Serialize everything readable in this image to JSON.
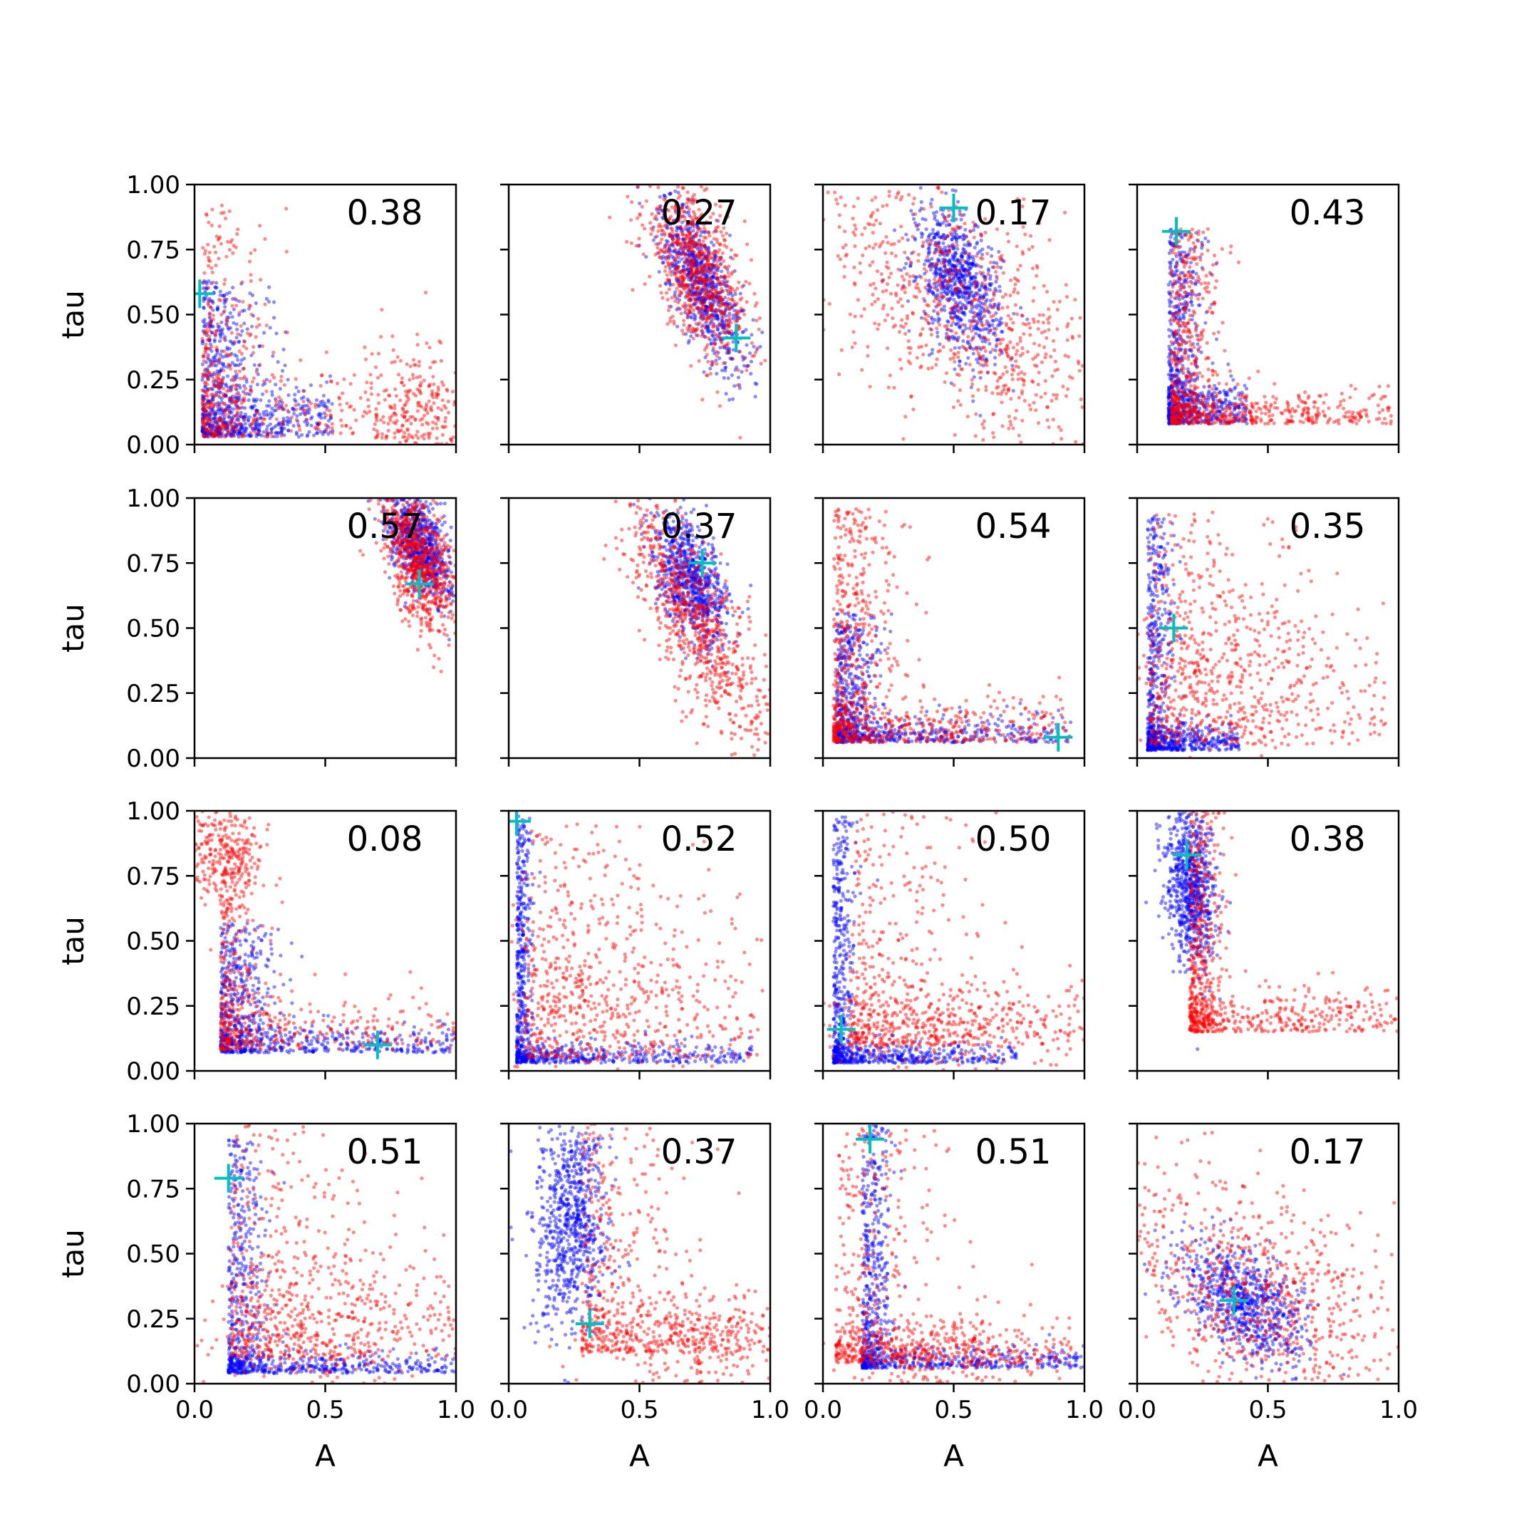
{
  "chart_data": {
    "type": "scatter",
    "rows": 4,
    "cols": 4,
    "xlabel": "A",
    "ylabel": "tau",
    "xlim": [
      0,
      1
    ],
    "ylim": [
      0,
      1
    ],
    "xticks": [
      "0.0",
      "0.5",
      "1.0"
    ],
    "yticks": [
      "0.00",
      "0.25",
      "0.50",
      "0.75",
      "1.00"
    ],
    "colors": {
      "series_a": "#0000ff",
      "series_b": "#ff0000",
      "truth_marker": "#00bfbf"
    },
    "grid": false,
    "panels": [
      {
        "label": "0.38",
        "truth": [
          0.02,
          0.58
        ],
        "blue": {
          "shape": "L",
          "x0": 0.03,
          "y0": 0.03,
          "sx": 0.1,
          "sy": 0.1,
          "kx": 0.5,
          "ky": 0.6
        },
        "red": {
          "shape": "Lplus",
          "x0": 0.03,
          "y0": 0.03,
          "cluster": [
            0.85,
            0.12
          ],
          "sx": 0.12,
          "sy": 0.15
        }
      },
      {
        "label": "0.27",
        "truth": [
          0.87,
          0.41
        ],
        "blue": {
          "shape": "blob",
          "cx": 0.74,
          "cy": 0.62,
          "sx": 0.08,
          "sy": 0.16,
          "rho": -0.7
        },
        "red": {
          "shape": "blob",
          "cx": 0.72,
          "cy": 0.66,
          "sx": 0.1,
          "sy": 0.17,
          "rho": -0.6
        }
      },
      {
        "label": "0.17",
        "truth": [
          0.5,
          0.91
        ],
        "blue": {
          "shape": "blob",
          "cx": 0.52,
          "cy": 0.62,
          "sx": 0.08,
          "sy": 0.14,
          "rho": -0.4
        },
        "red": {
          "shape": "blob",
          "cx": 0.55,
          "cy": 0.5,
          "sx": 0.28,
          "sy": 0.28,
          "rho": -0.6
        }
      },
      {
        "label": "0.43",
        "truth": [
          0.15,
          0.82
        ],
        "blue": {
          "shape": "L",
          "x0": 0.12,
          "y0": 0.08,
          "sx": 0.06,
          "sy": 0.08,
          "kx": 0.3,
          "ky": 0.75
        },
        "red": {
          "shape": "L",
          "x0": 0.13,
          "y0": 0.08,
          "sx": 0.09,
          "sy": 0.06,
          "kx": 0.85,
          "ky": 0.75
        }
      },
      {
        "label": "0.57",
        "truth": [
          0.86,
          0.67
        ],
        "blue": {
          "shape": "blob",
          "cx": 0.86,
          "cy": 0.82,
          "sx": 0.06,
          "sy": 0.1,
          "rho": -0.5
        },
        "red": {
          "shape": "blob",
          "cx": 0.86,
          "cy": 0.76,
          "sx": 0.07,
          "sy": 0.14,
          "rho": -0.5
        }
      },
      {
        "label": "0.37",
        "truth": [
          0.74,
          0.75
        ],
        "blue": {
          "shape": "blob",
          "cx": 0.7,
          "cy": 0.68,
          "sx": 0.07,
          "sy": 0.12,
          "rho": -0.5
        },
        "red": {
          "shape": "blob",
          "cx": 0.72,
          "cy": 0.52,
          "sx": 0.14,
          "sy": 0.25,
          "rho": -0.8
        }
      },
      {
        "label": "0.54",
        "truth": [
          0.9,
          0.08
        ],
        "blue": {
          "shape": "L",
          "x0": 0.05,
          "y0": 0.06,
          "sx": 0.08,
          "sy": 0.05,
          "kx": 0.9,
          "ky": 0.5
        },
        "red": {
          "shape": "L",
          "x0": 0.04,
          "y0": 0.06,
          "sx": 0.12,
          "sy": 0.08,
          "kx": 0.9,
          "ky": 0.9
        }
      },
      {
        "label": "0.35",
        "truth": [
          0.14,
          0.5
        ],
        "blue": {
          "shape": "L",
          "x0": 0.04,
          "y0": 0.03,
          "sx": 0.05,
          "sy": 0.05,
          "kx": 0.35,
          "ky": 0.9
        },
        "red": {
          "shape": "Lplus",
          "x0": 0.05,
          "y0": 0.05,
          "cluster": [
            0.35,
            0.35
          ],
          "sx": 0.25,
          "sy": 0.22
        }
      },
      {
        "label": "0.08",
        "truth": [
          0.7,
          0.1
        ],
        "blue": {
          "shape": "L",
          "x0": 0.1,
          "y0": 0.07,
          "sx": 0.1,
          "sy": 0.05,
          "kx": 0.95,
          "ky": 0.5
        },
        "red": {
          "shape": "Lplus",
          "x0": 0.1,
          "y0": 0.08,
          "cluster": [
            0.1,
            0.82
          ],
          "sx": 0.08,
          "sy": 0.1
        }
      },
      {
        "label": "0.52",
        "truth": [
          0.03,
          0.96
        ],
        "blue": {
          "shape": "L",
          "x0": 0.03,
          "y0": 0.03,
          "sx": 0.03,
          "sy": 0.04,
          "kx": 0.9,
          "ky": 0.95
        },
        "red": {
          "shape": "Lplus",
          "x0": 0.06,
          "y0": 0.05,
          "cluster": [
            0.35,
            0.25
          ],
          "sx": 0.3,
          "sy": 0.25
        }
      },
      {
        "label": "0.50",
        "truth": [
          0.07,
          0.16
        ],
        "blue": {
          "shape": "L",
          "x0": 0.04,
          "y0": 0.03,
          "sx": 0.04,
          "sy": 0.04,
          "kx": 0.7,
          "ky": 0.95
        },
        "red": {
          "shape": "Lplus",
          "x0": 0.1,
          "y0": 0.1,
          "cluster": [
            0.45,
            0.15
          ],
          "sx": 0.25,
          "sy": 0.12
        }
      },
      {
        "label": "0.38",
        "truth": [
          0.19,
          0.83
        ],
        "blue": {
          "shape": "blob",
          "cx": 0.2,
          "cy": 0.7,
          "sx": 0.05,
          "sy": 0.15,
          "rho": -0.3
        },
        "red": {
          "shape": "L",
          "x0": 0.2,
          "y0": 0.15,
          "sx": 0.06,
          "sy": 0.08,
          "kx": 0.95,
          "ky": 0.85
        }
      },
      {
        "label": "0.51",
        "truth": [
          0.13,
          0.79
        ],
        "blue": {
          "shape": "L",
          "x0": 0.13,
          "y0": 0.04,
          "sx": 0.07,
          "sy": 0.04,
          "kx": 0.95,
          "ky": 0.9
        },
        "red": {
          "shape": "Lplus",
          "x0": 0.14,
          "y0": 0.1,
          "cluster": [
            0.55,
            0.2
          ],
          "sx": 0.25,
          "sy": 0.18
        }
      },
      {
        "label": "0.37",
        "truth": [
          0.31,
          0.23
        ],
        "blue": {
          "shape": "blob",
          "cx": 0.24,
          "cy": 0.62,
          "sx": 0.07,
          "sy": 0.2,
          "rho": 0.1
        },
        "red": {
          "shape": "Lplus",
          "x0": 0.28,
          "y0": 0.12,
          "cluster": [
            0.7,
            0.15
          ],
          "sx": 0.2,
          "sy": 0.1
        }
      },
      {
        "label": "0.51",
        "truth": [
          0.18,
          0.94
        ],
        "blue": {
          "shape": "L",
          "x0": 0.15,
          "y0": 0.06,
          "sx": 0.06,
          "sy": 0.04,
          "kx": 0.95,
          "ky": 0.95
        },
        "red": {
          "shape": "Lplus",
          "x0": 0.05,
          "y0": 0.08,
          "cluster": [
            0.45,
            0.1
          ],
          "sx": 0.2,
          "sy": 0.08
        }
      },
      {
        "label": "0.17",
        "truth": [
          0.37,
          0.32
        ],
        "blue": {
          "shape": "blob",
          "cx": 0.4,
          "cy": 0.32,
          "sx": 0.12,
          "sy": 0.12,
          "rho": -0.5
        },
        "red": {
          "shape": "blob",
          "cx": 0.45,
          "cy": 0.35,
          "sx": 0.28,
          "sy": 0.25,
          "rho": -0.5
        }
      }
    ]
  }
}
